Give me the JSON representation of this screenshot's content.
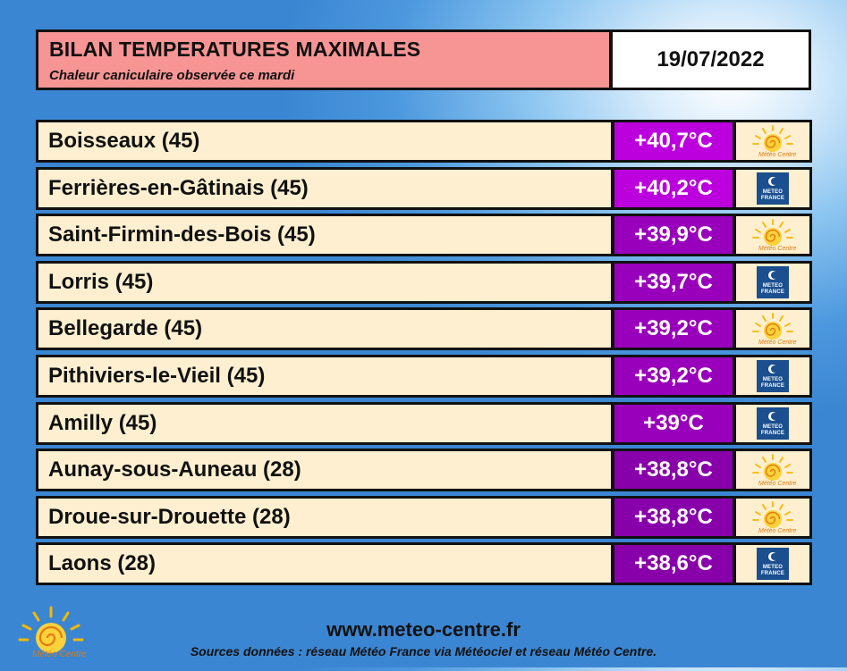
{
  "header": {
    "title": "BILAN TEMPERATURES MAXIMALES",
    "subtitle": "Chaleur caniculaire observée ce mardi",
    "date": "19/07/2022"
  },
  "rows": [
    {
      "station": "Boisseaux (45)",
      "temp": "+40,7°C",
      "temp_color": "#bb00dd",
      "source": "meteo-centre"
    },
    {
      "station": "Ferrières-en-Gâtinais (45)",
      "temp": "+40,2°C",
      "temp_color": "#bb00dd",
      "source": "meteo-france"
    },
    {
      "station": "Saint-Firmin-des-Bois (45)",
      "temp": "+39,9°C",
      "temp_color": "#9900bb",
      "source": "meteo-centre"
    },
    {
      "station": "Lorris (45)",
      "temp": "+39,7°C",
      "temp_color": "#9900bb",
      "source": "meteo-france"
    },
    {
      "station": "Bellegarde (45)",
      "temp": "+39,2°C",
      "temp_color": "#9900bb",
      "source": "meteo-centre"
    },
    {
      "station": "Pithiviers-le-Vieil (45)",
      "temp": "+39,2°C",
      "temp_color": "#9900bb",
      "source": "meteo-france"
    },
    {
      "station": "Amilly (45)",
      "temp": "+39°C",
      "temp_color": "#9900bb",
      "source": "meteo-france"
    },
    {
      "station": "Aunay-sous-Auneau (28)",
      "temp": "+38,8°C",
      "temp_color": "#8800aa",
      "source": "meteo-centre"
    },
    {
      "station": "Droue-sur-Drouette (28)",
      "temp": "+38,8°C",
      "temp_color": "#8800aa",
      "source": "meteo-centre"
    },
    {
      "station": "Laons (28)",
      "temp": "+38,6°C",
      "temp_color": "#8800aa",
      "source": "meteo-france"
    }
  ],
  "logos": {
    "meteo_france_text": "METEO FRANCE",
    "meteo_centre_text": "Météo Centre"
  },
  "footer": {
    "url": "www.meteo-centre.fr",
    "sources": "Sources données : réseau Météo France via Météociel et réseau Météo Centre."
  }
}
